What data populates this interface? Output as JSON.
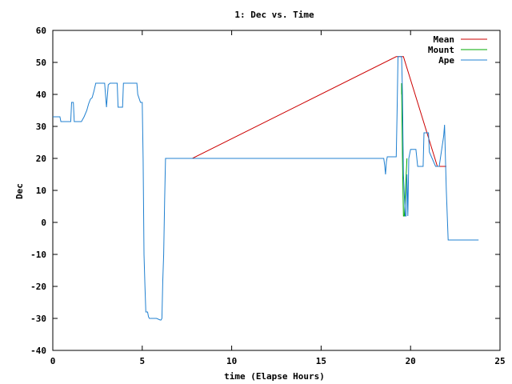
{
  "chart_data": {
    "type": "line",
    "title": "1: Dec vs. Time",
    "xlabel": "time (Elapse Hours)",
    "ylabel": "Dec",
    "xlim": [
      0,
      25
    ],
    "ylim": [
      -40,
      60
    ],
    "xticks": [
      0,
      5,
      10,
      15,
      20,
      25
    ],
    "yticks": [
      -40,
      -30,
      -20,
      -10,
      0,
      10,
      20,
      30,
      40,
      50,
      60
    ],
    "grid": false,
    "legend_position": "top-right",
    "series": [
      {
        "name": "Mean",
        "color": "#cc0000",
        "x": [
          6.3,
          7.8,
          19.2,
          19.6,
          21.5,
          22.0
        ],
        "y": [
          20.0,
          20.0,
          51.8,
          51.8,
          17.5,
          17.5
        ]
      },
      {
        "name": "Mount",
        "color": "#00aa00",
        "x": [
          19.5,
          19.5,
          19.55,
          19.6,
          19.65,
          19.8
        ],
        "y": [
          40.0,
          43.5,
          20.0,
          2.0,
          2.0,
          20.0
        ]
      },
      {
        "name": "Ape",
        "color": "#2080d0",
        "x": [
          0,
          0.4,
          0.45,
          1.0,
          1.05,
          1.15,
          1.2,
          1.6,
          1.75,
          1.9,
          1.95,
          2.0,
          2.1,
          2.2,
          2.3,
          2.4,
          2.45,
          2.9,
          3.0,
          3.1,
          3.2,
          3.6,
          3.65,
          3.9,
          3.95,
          4.7,
          4.75,
          4.9,
          5.0,
          5.05,
          5.1,
          5.15,
          5.2,
          5.3,
          5.35,
          5.4,
          5.5,
          5.55,
          5.8,
          6.0,
          6.05,
          6.1,
          6.15,
          6.2,
          6.25,
          6.3,
          18.5,
          18.55,
          18.6,
          18.65,
          18.7,
          19.2,
          19.25,
          19.3,
          19.35,
          19.5,
          19.55,
          19.6,
          19.7,
          19.75,
          19.8,
          19.85,
          19.9,
          20.0,
          20.3,
          20.4,
          20.45,
          20.7,
          20.75,
          21.0,
          21.05,
          21.4,
          21.45,
          21.6,
          21.85,
          21.9,
          21.95,
          22.0,
          22.1,
          23.8
        ],
        "y": [
          33.0,
          33.0,
          31.5,
          31.5,
          37.5,
          37.5,
          31.5,
          31.5,
          33.0,
          35.0,
          36.0,
          37.0,
          38.5,
          39.0,
          41.0,
          43.5,
          43.5,
          43.5,
          36.0,
          43.0,
          43.5,
          43.5,
          36.0,
          36.0,
          43.5,
          43.5,
          40.0,
          37.5,
          37.5,
          20.0,
          -10.0,
          -20.0,
          -28.0,
          -28.0,
          -29.5,
          -30.0,
          -30.0,
          -30.0,
          -30.0,
          -30.5,
          -30.5,
          -30.0,
          -18.0,
          -10.0,
          7.0,
          20.0,
          20.0,
          18.0,
          15.0,
          19.0,
          20.5,
          20.5,
          35.0,
          51.8,
          51.8,
          51.8,
          40.0,
          15.0,
          2.0,
          2.0,
          15.0,
          2.0,
          20.0,
          22.8,
          22.8,
          17.5,
          17.5,
          17.5,
          28.0,
          28.0,
          22.0,
          17.5,
          17.5,
          17.5,
          27.0,
          30.5,
          20.0,
          10.0,
          -5.5,
          -5.5
        ]
      }
    ]
  }
}
